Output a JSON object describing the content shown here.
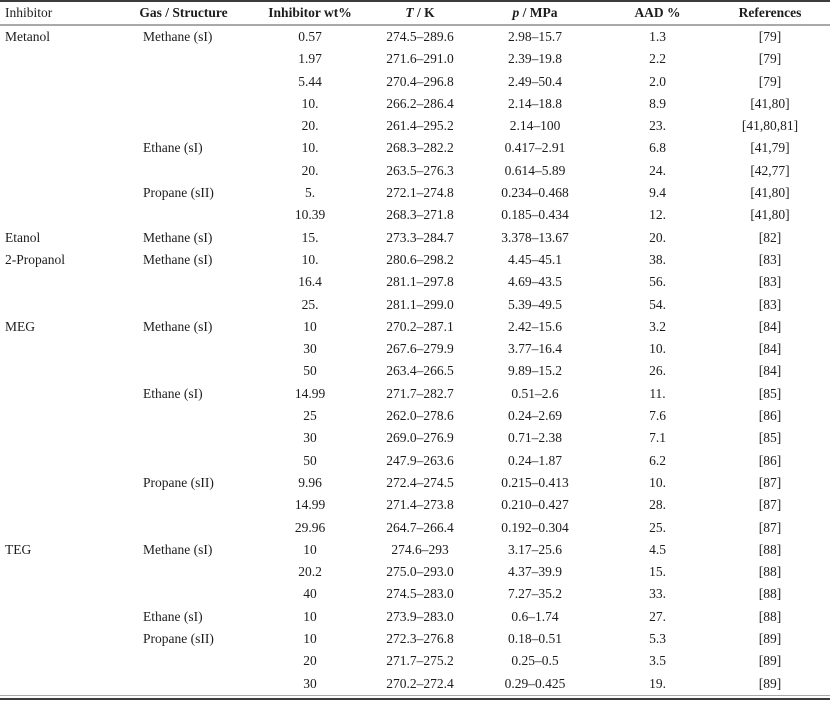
{
  "colors": {
    "rule_dark": "#3c3c3c",
    "rule_light": "#a9a9a9",
    "text": "#1c1c1c"
  },
  "table": {
    "headers": {
      "inhibitor": "Inhibitor",
      "gas": "Gas / Structure",
      "wt": "Inhibitor wt%",
      "t_symbol": "T",
      "t_rest": " / K",
      "p_symbol": "p",
      "p_rest": " / MPa",
      "aad": "AAD %",
      "references": "References"
    },
    "rows": [
      {
        "inhibitor": "Metanol",
        "gas": "Methane (sI)",
        "wt": "0.57",
        "t": "274.5–289.6",
        "p": "2.98–15.7",
        "aad": "1.3",
        "ref": "[79]"
      },
      {
        "inhibitor": "",
        "gas": "",
        "wt": "1.97",
        "t": "271.6–291.0",
        "p": "2.39–19.8",
        "aad": "2.2",
        "ref": "[79]"
      },
      {
        "inhibitor": "",
        "gas": "",
        "wt": "5.44",
        "t": "270.4–296.8",
        "p": "2.49–50.4",
        "aad": "2.0",
        "ref": "[79]"
      },
      {
        "inhibitor": "",
        "gas": "",
        "wt": "10.",
        "t": "266.2–286.4",
        "p": "2.14–18.8",
        "aad": "8.9",
        "ref": "[41,80]"
      },
      {
        "inhibitor": "",
        "gas": "",
        "wt": "20.",
        "t": "261.4–295.2",
        "p": "2.14–100",
        "aad": "23.",
        "ref": "[41,80,81]"
      },
      {
        "inhibitor": "",
        "gas": "Ethane (sI)",
        "wt": "10.",
        "t": "268.3–282.2",
        "p": "0.417–2.91",
        "aad": "6.8",
        "ref": "[41,79]"
      },
      {
        "inhibitor": "",
        "gas": "",
        "wt": "20.",
        "t": "263.5–276.3",
        "p": "0.614–5.89",
        "aad": "24.",
        "ref": "[42,77]"
      },
      {
        "inhibitor": "",
        "gas": "Propane (sII)",
        "wt": "5.",
        "t": "272.1–274.8",
        "p": "0.234–0.468",
        "aad": "9.4",
        "ref": "[41,80]"
      },
      {
        "inhibitor": "",
        "gas": "",
        "wt": "10.39",
        "t": "268.3–271.8",
        "p": "0.185–0.434",
        "aad": "12.",
        "ref": "[41,80]"
      },
      {
        "inhibitor": "Etanol",
        "gas": "Methane (sI)",
        "wt": "15.",
        "t": "273.3–284.7",
        "p": "3.378–13.67",
        "aad": "20.",
        "ref": "[82]"
      },
      {
        "inhibitor": "2-Propanol",
        "gas": "Methane (sI)",
        "wt": "10.",
        "t": "280.6–298.2",
        "p": "4.45–45.1",
        "aad": "38.",
        "ref": "[83]"
      },
      {
        "inhibitor": "",
        "gas": "",
        "wt": "16.4",
        "t": "281.1–297.8",
        "p": "4.69–43.5",
        "aad": "56.",
        "ref": "[83]"
      },
      {
        "inhibitor": "",
        "gas": "",
        "wt": "25.",
        "t": "281.1–299.0",
        "p": "5.39–49.5",
        "aad": "54.",
        "ref": "[83]"
      },
      {
        "inhibitor": "MEG",
        "gas": "Methane (sI)",
        "wt": "10",
        "t": "270.2–287.1",
        "p": "2.42–15.6",
        "aad": "3.2",
        "ref": "[84]"
      },
      {
        "inhibitor": "",
        "gas": "",
        "wt": "30",
        "t": "267.6–279.9",
        "p": "3.77–16.4",
        "aad": "10.",
        "ref": "[84]"
      },
      {
        "inhibitor": "",
        "gas": "",
        "wt": "50",
        "t": "263.4–266.5",
        "p": "9.89–15.2",
        "aad": "26.",
        "ref": "[84]"
      },
      {
        "inhibitor": "",
        "gas": "Ethane (sI)",
        "wt": "14.99",
        "t": "271.7–282.7",
        "p": "0.51–2.6",
        "aad": "11.",
        "ref": "[85]"
      },
      {
        "inhibitor": "",
        "gas": "",
        "wt": "25",
        "t": "262.0–278.6",
        "p": "0.24–2.69",
        "aad": "7.6",
        "ref": "[86]"
      },
      {
        "inhibitor": "",
        "gas": "",
        "wt": "30",
        "t": "269.0–276.9",
        "p": "0.71–2.38",
        "aad": "7.1",
        "ref": "[85]"
      },
      {
        "inhibitor": "",
        "gas": "",
        "wt": "50",
        "t": "247.9–263.6",
        "p": "0.24–1.87",
        "aad": "6.2",
        "ref": "[86]"
      },
      {
        "inhibitor": "",
        "gas": "Propane (sII)",
        "wt": "9.96",
        "t": "272.4–274.5",
        "p": "0.215–0.413",
        "aad": "10.",
        "ref": "[87]"
      },
      {
        "inhibitor": "",
        "gas": "",
        "wt": "14.99",
        "t": "271.4–273.8",
        "p": "0.210–0.427",
        "aad": "28.",
        "ref": "[87]"
      },
      {
        "inhibitor": "",
        "gas": "",
        "wt": "29.96",
        "t": "264.7–266.4",
        "p": "0.192–0.304",
        "aad": "25.",
        "ref": "[87]"
      },
      {
        "inhibitor": "TEG",
        "gas": "Methane (sI)",
        "wt": "10",
        "t": "274.6–293",
        "p": "3.17–25.6",
        "aad": "4.5",
        "ref": "[88]"
      },
      {
        "inhibitor": "",
        "gas": "",
        "wt": "20.2",
        "t": "275.0–293.0",
        "p": "4.37–39.9",
        "aad": "15.",
        "ref": "[88]"
      },
      {
        "inhibitor": "",
        "gas": "",
        "wt": "40",
        "t": "274.5–283.0",
        "p": "7.27–35.2",
        "aad": "33.",
        "ref": "[88]"
      },
      {
        "inhibitor": "",
        "gas": "Ethane (sI)",
        "wt": "10",
        "t": "273.9–283.0",
        "p": "0.6–1.74",
        "aad": "27.",
        "ref": "[88]"
      },
      {
        "inhibitor": "",
        "gas": "Propane (sII)",
        "wt": "10",
        "t": "272.3–276.8",
        "p": "0.18–0.51",
        "aad": "5.3",
        "ref": "[89]"
      },
      {
        "inhibitor": "",
        "gas": "",
        "wt": "20",
        "t": "271.7–275.2",
        "p": "0.25–0.5",
        "aad": "3.5",
        "ref": "[89]"
      },
      {
        "inhibitor": "",
        "gas": "",
        "wt": "30",
        "t": "270.2–272.4",
        "p": "0.29–0.425",
        "aad": "19.",
        "ref": "[89]"
      }
    ]
  }
}
